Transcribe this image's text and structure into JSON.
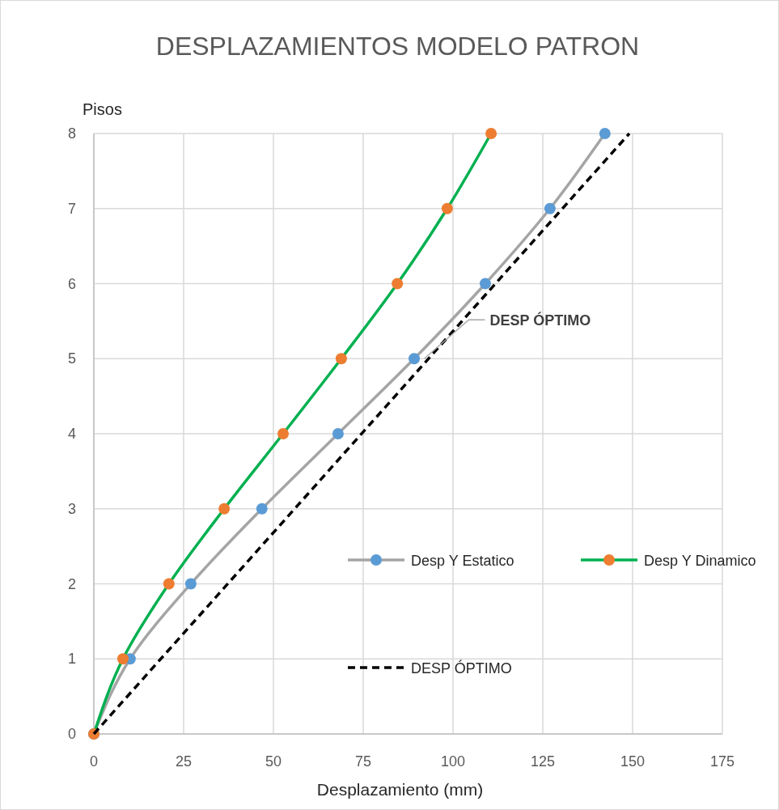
{
  "chart_data": {
    "type": "line",
    "title": "DESPLAZAMIENTOS MODELO PATRON",
    "xlabel": "Desplazamiento (mm)",
    "ylabel": "Pisos",
    "series": [
      {
        "name": "Desp Y Estatico",
        "color": "#a5a5a5",
        "colors": [
          "#5b9bd5",
          "#5b9bd5",
          "#5b9bd5",
          "#5b9bd5",
          "#5b9bd5",
          "#5b9bd5",
          "#5b9bd5",
          "#5b9bd5",
          "#5b9bd5"
        ],
        "marker": "circle",
        "x": [
          0,
          10.1,
          27,
          46.8,
          68,
          89.2,
          109,
          127,
          142.3
        ],
        "values": [
          0,
          1,
          2,
          3,
          4,
          5,
          6,
          7,
          8
        ]
      },
      {
        "name": "Desp Y Dinamico",
        "color": "#00b050",
        "colors": [
          "#ed7d31",
          "#ed7d31",
          "#ed7d31",
          "#ed7d31",
          "#ed7d31",
          "#ed7d31",
          "#ed7d31",
          "#ed7d31",
          "#ed7d31"
        ],
        "marker": "circle",
        "x": [
          0,
          8.1,
          20.9,
          36.3,
          52.7,
          68.9,
          84.5,
          98.4,
          110.6
        ],
        "values": [
          0,
          1,
          2,
          3,
          4,
          5,
          6,
          7,
          8
        ]
      },
      {
        "name": "DESP ÓPTIMO",
        "color": "#000000",
        "marker": "none",
        "line_style": "dashed",
        "x": [
          0,
          149.1
        ],
        "values": [
          0,
          8
        ]
      }
    ],
    "annotations": [
      {
        "text": "DESP ÓPTIMO",
        "x": 92,
        "y": 5
      }
    ],
    "xlim": [
      0,
      175
    ],
    "ylim": [
      0,
      8
    ],
    "xticks": [
      0,
      25,
      50,
      75,
      100,
      125,
      150,
      175
    ],
    "yticks": [
      0,
      1,
      2,
      3,
      4,
      5,
      6,
      7,
      8
    ],
    "grid": true,
    "legend": "right"
  }
}
